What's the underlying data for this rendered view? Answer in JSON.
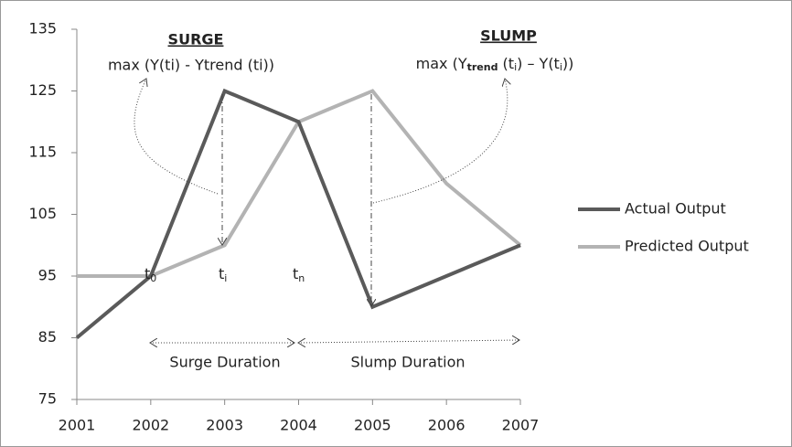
{
  "chart_data": {
    "type": "line",
    "categories": [
      "2001",
      "2002",
      "2003",
      "2004",
      "2005",
      "2006",
      "2007"
    ],
    "series": [
      {
        "name": "Actual Output",
        "color": "#5a5a5a",
        "values": [
          85,
          95,
          125,
          120,
          90,
          95,
          100
        ]
      },
      {
        "name": "Predicted Output",
        "color": "#b3b3b3",
        "values": [
          95,
          95,
          100,
          120,
          125,
          110,
          100
        ]
      }
    ],
    "ylim": [
      75,
      135
    ],
    "yticks": [
      75,
      85,
      95,
      105,
      115,
      125,
      135
    ],
    "grid": false,
    "legend": "right",
    "annotations": {
      "surge_title": "SURGE",
      "surge_formula": "max (Y(ti) - Ytrend (ti))",
      "slump_title": "SLUMP",
      "slump_formula": [
        "max (Y",
        "trend",
        " (t",
        "i",
        ") – Y(t",
        "i",
        "))"
      ],
      "t_labels": [
        [
          "t",
          "0"
        ],
        [
          "t",
          "i"
        ],
        [
          "t",
          "n"
        ]
      ],
      "surge_duration": "Surge Duration",
      "slump_duration": "Slump Duration"
    }
  }
}
